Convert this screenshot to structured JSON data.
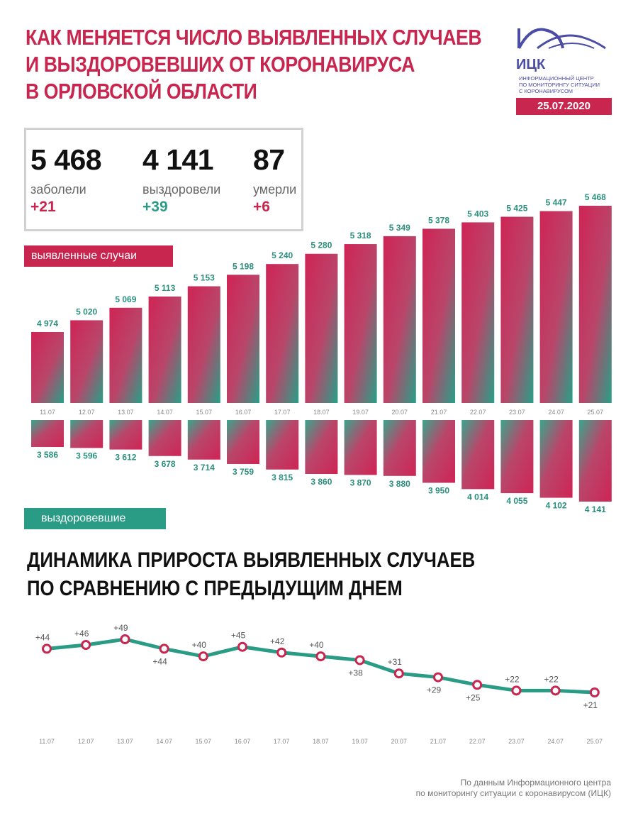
{
  "header": {
    "title_lines": [
      "КАК МЕНЯЕТСЯ ЧИСЛО ВЫЯВЛЕННЫХ СЛУЧАЕВ",
      "И ВЫЗДОРОВЕВШИХ ОТ КОРОНАВИРУСА",
      "В ОРЛОВСКОЙ ОБЛАСТИ"
    ],
    "logo_name": "ИЦК",
    "logo_sub_lines": [
      "Информационный центр",
      "по мониторингу ситуации",
      "с коронавирусом"
    ],
    "date": "25.07.2020"
  },
  "stats": [
    {
      "value": "5 468",
      "label": "заболели",
      "delta": "+21",
      "delta_color": "#c8264f"
    },
    {
      "value": "4 141",
      "label": "выздоровели",
      "delta": "+39",
      "delta_color": "#2a9c86"
    },
    {
      "value": "87",
      "label": "умерли",
      "delta": "+6",
      "delta_color": "#c8264f"
    }
  ],
  "labels": {
    "cases_tag": "выявленные случаи",
    "recovered_tag": "выздоровевшие"
  },
  "subtitle_lines": [
    "ДИНАМИКА ПРИРОСТА ВЫЯВЛЕННЫХ СЛУЧАЕВ",
    "ПО СРАВНЕНИЮ С ПРЕДЫДУЩИМ ДНЕМ"
  ],
  "footer_lines": [
    "По данным Информационного центра",
    "по мониторингу ситуации с коронавирусом (ИЦК)"
  ],
  "colors": {
    "accent": "#c8264f",
    "teal": "#2a9c86",
    "logo": "#4a4ca6"
  },
  "chart_data": [
    {
      "type": "bar",
      "categories": [
        "11.07",
        "12.07",
        "13.07",
        "14.07",
        "15.07",
        "16.07",
        "17.07",
        "18.07",
        "19.07",
        "20.07",
        "21.07",
        "22.07",
        "23.07",
        "24.07",
        "25.07"
      ],
      "series": [
        {
          "name": "выявленные случаи",
          "values": [
            4974,
            5020,
            5069,
            5113,
            5153,
            5198,
            5240,
            5280,
            5318,
            5349,
            5378,
            5403,
            5425,
            5447,
            5468
          ],
          "labels": [
            "4 974",
            "5 020",
            "5 069",
            "5 113",
            "5 153",
            "5 198",
            "5 240",
            "5 280",
            "5 318",
            "5 349",
            "5 378",
            "5 403",
            "5 425",
            "5 447",
            "5 468"
          ]
        },
        {
          "name": "выздоровевшие",
          "values": [
            3586,
            3596,
            3612,
            3678,
            3714,
            3759,
            3815,
            3860,
            3870,
            3880,
            3950,
            4014,
            4055,
            4102,
            4141
          ],
          "labels": [
            "3 586",
            "3 596",
            "3 612",
            "3 678",
            "3 714",
            "3 759",
            "3 815",
            "3 860",
            "3 870",
            "3 880",
            "3 950",
            "4 014",
            "4 055",
            "4 102",
            "4 141"
          ]
        }
      ],
      "orientation": "cases upward, recovered downward (mirrored)"
    },
    {
      "type": "line",
      "categories": [
        "11.07",
        "12.07",
        "13.07",
        "14.07",
        "15.07",
        "16.07",
        "17.07",
        "18.07",
        "19.07",
        "20.07",
        "21.07",
        "22.07",
        "23.07",
        "24.07",
        "25.07"
      ],
      "values": [
        44,
        46,
        49,
        44,
        40,
        45,
        42,
        40,
        38,
        31,
        29,
        25,
        22,
        22,
        21
      ],
      "labels": [
        "+44",
        "+46",
        "+49",
        "+44",
        "+40",
        "+45",
        "+42",
        "+40",
        "+38",
        "+31",
        "+29",
        "+25",
        "+22",
        "+22",
        "+21"
      ],
      "label_position": [
        "above",
        "above",
        "above",
        "below",
        "above",
        "above",
        "above",
        "above",
        "below",
        "above",
        "below",
        "below",
        "above",
        "above",
        "below"
      ]
    }
  ]
}
